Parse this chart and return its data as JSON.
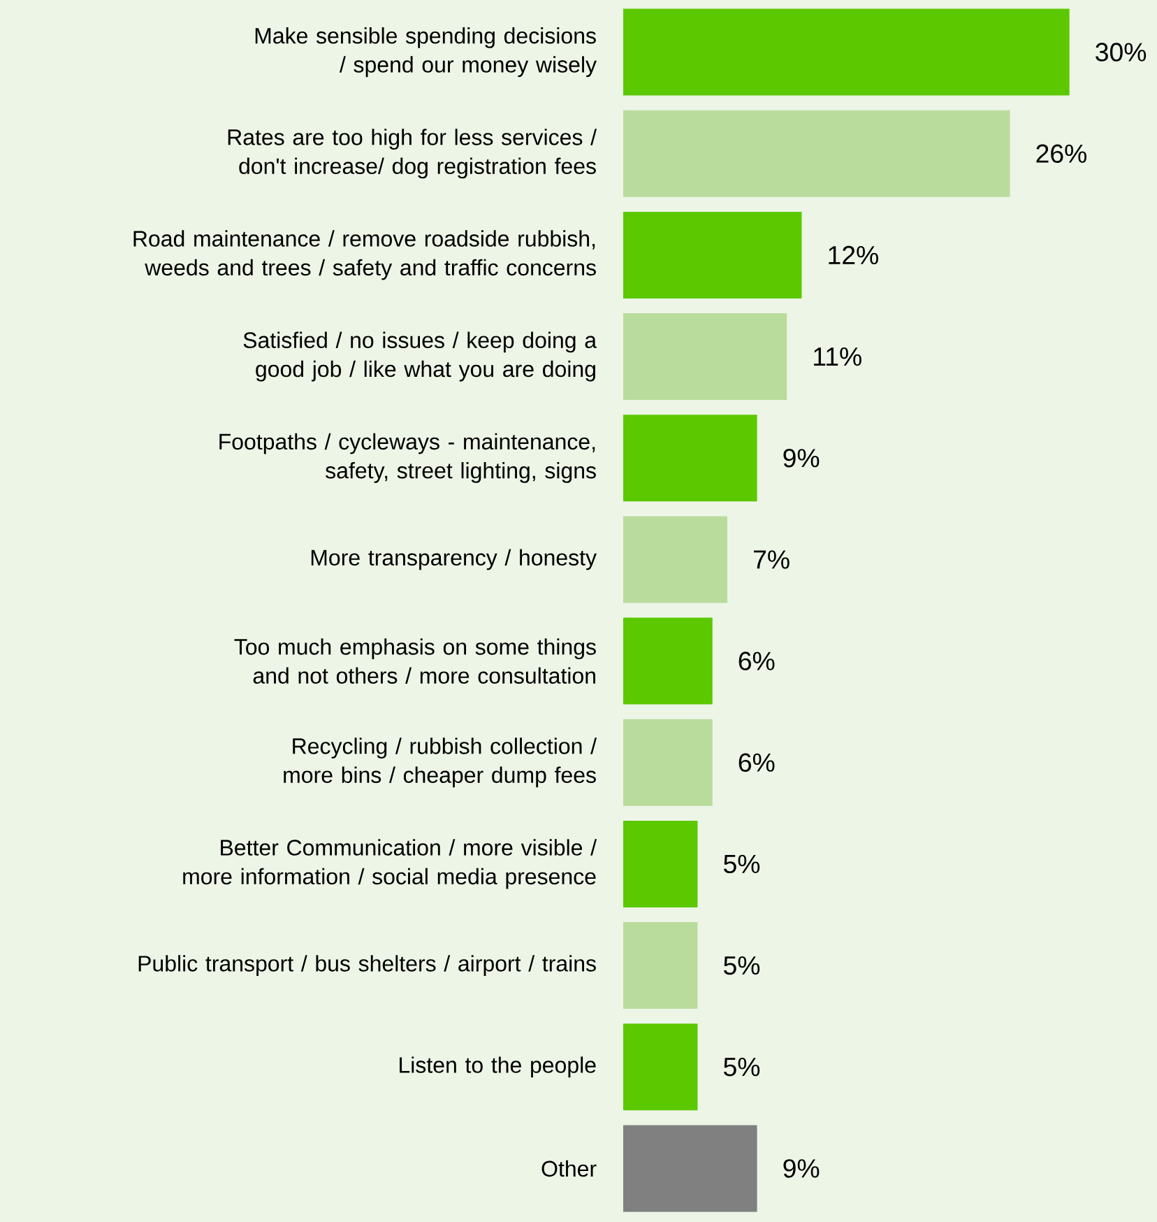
{
  "chart_data": {
    "type": "bar",
    "orientation": "horizontal",
    "categories": [
      "Make sensible spending decisions / spend our money wisely",
      "Rates are too high for less services / don't increase/ dog registration fees",
      "Road maintenance / remove roadside rubbish, weeds and trees / safety and traffic concerns",
      "Satisfied / no issues / keep doing a good job / like what you are doing",
      "Footpaths / cycleways - maintenance, safety, street lighting, signs",
      "More transparency / honesty",
      "Too much emphasis on some things and not others / more consultation",
      "Recycling / rubbish collection / more bins / cheaper dump fees",
      "Better Communication / more visible / more information / social media presence",
      "Public transport / bus shelters / airport / trains",
      "Listen to the people",
      "Other"
    ],
    "values": [
      30,
      26,
      12,
      11,
      9,
      7,
      6,
      6,
      5,
      5,
      5,
      9
    ],
    "value_labels": [
      "30%",
      "26%",
      "12%",
      "11%",
      "9%",
      "7%",
      "6%",
      "6%",
      "5%",
      "5%",
      "5%",
      "9%"
    ],
    "colors": [
      "#5bc800",
      "#b9dc9c",
      "#5bc800",
      "#b9dc9c",
      "#5bc800",
      "#b9dc9c",
      "#5bc800",
      "#b9dc9c",
      "#5bc800",
      "#b9dc9c",
      "#5bc800",
      "#808080"
    ]
  }
}
